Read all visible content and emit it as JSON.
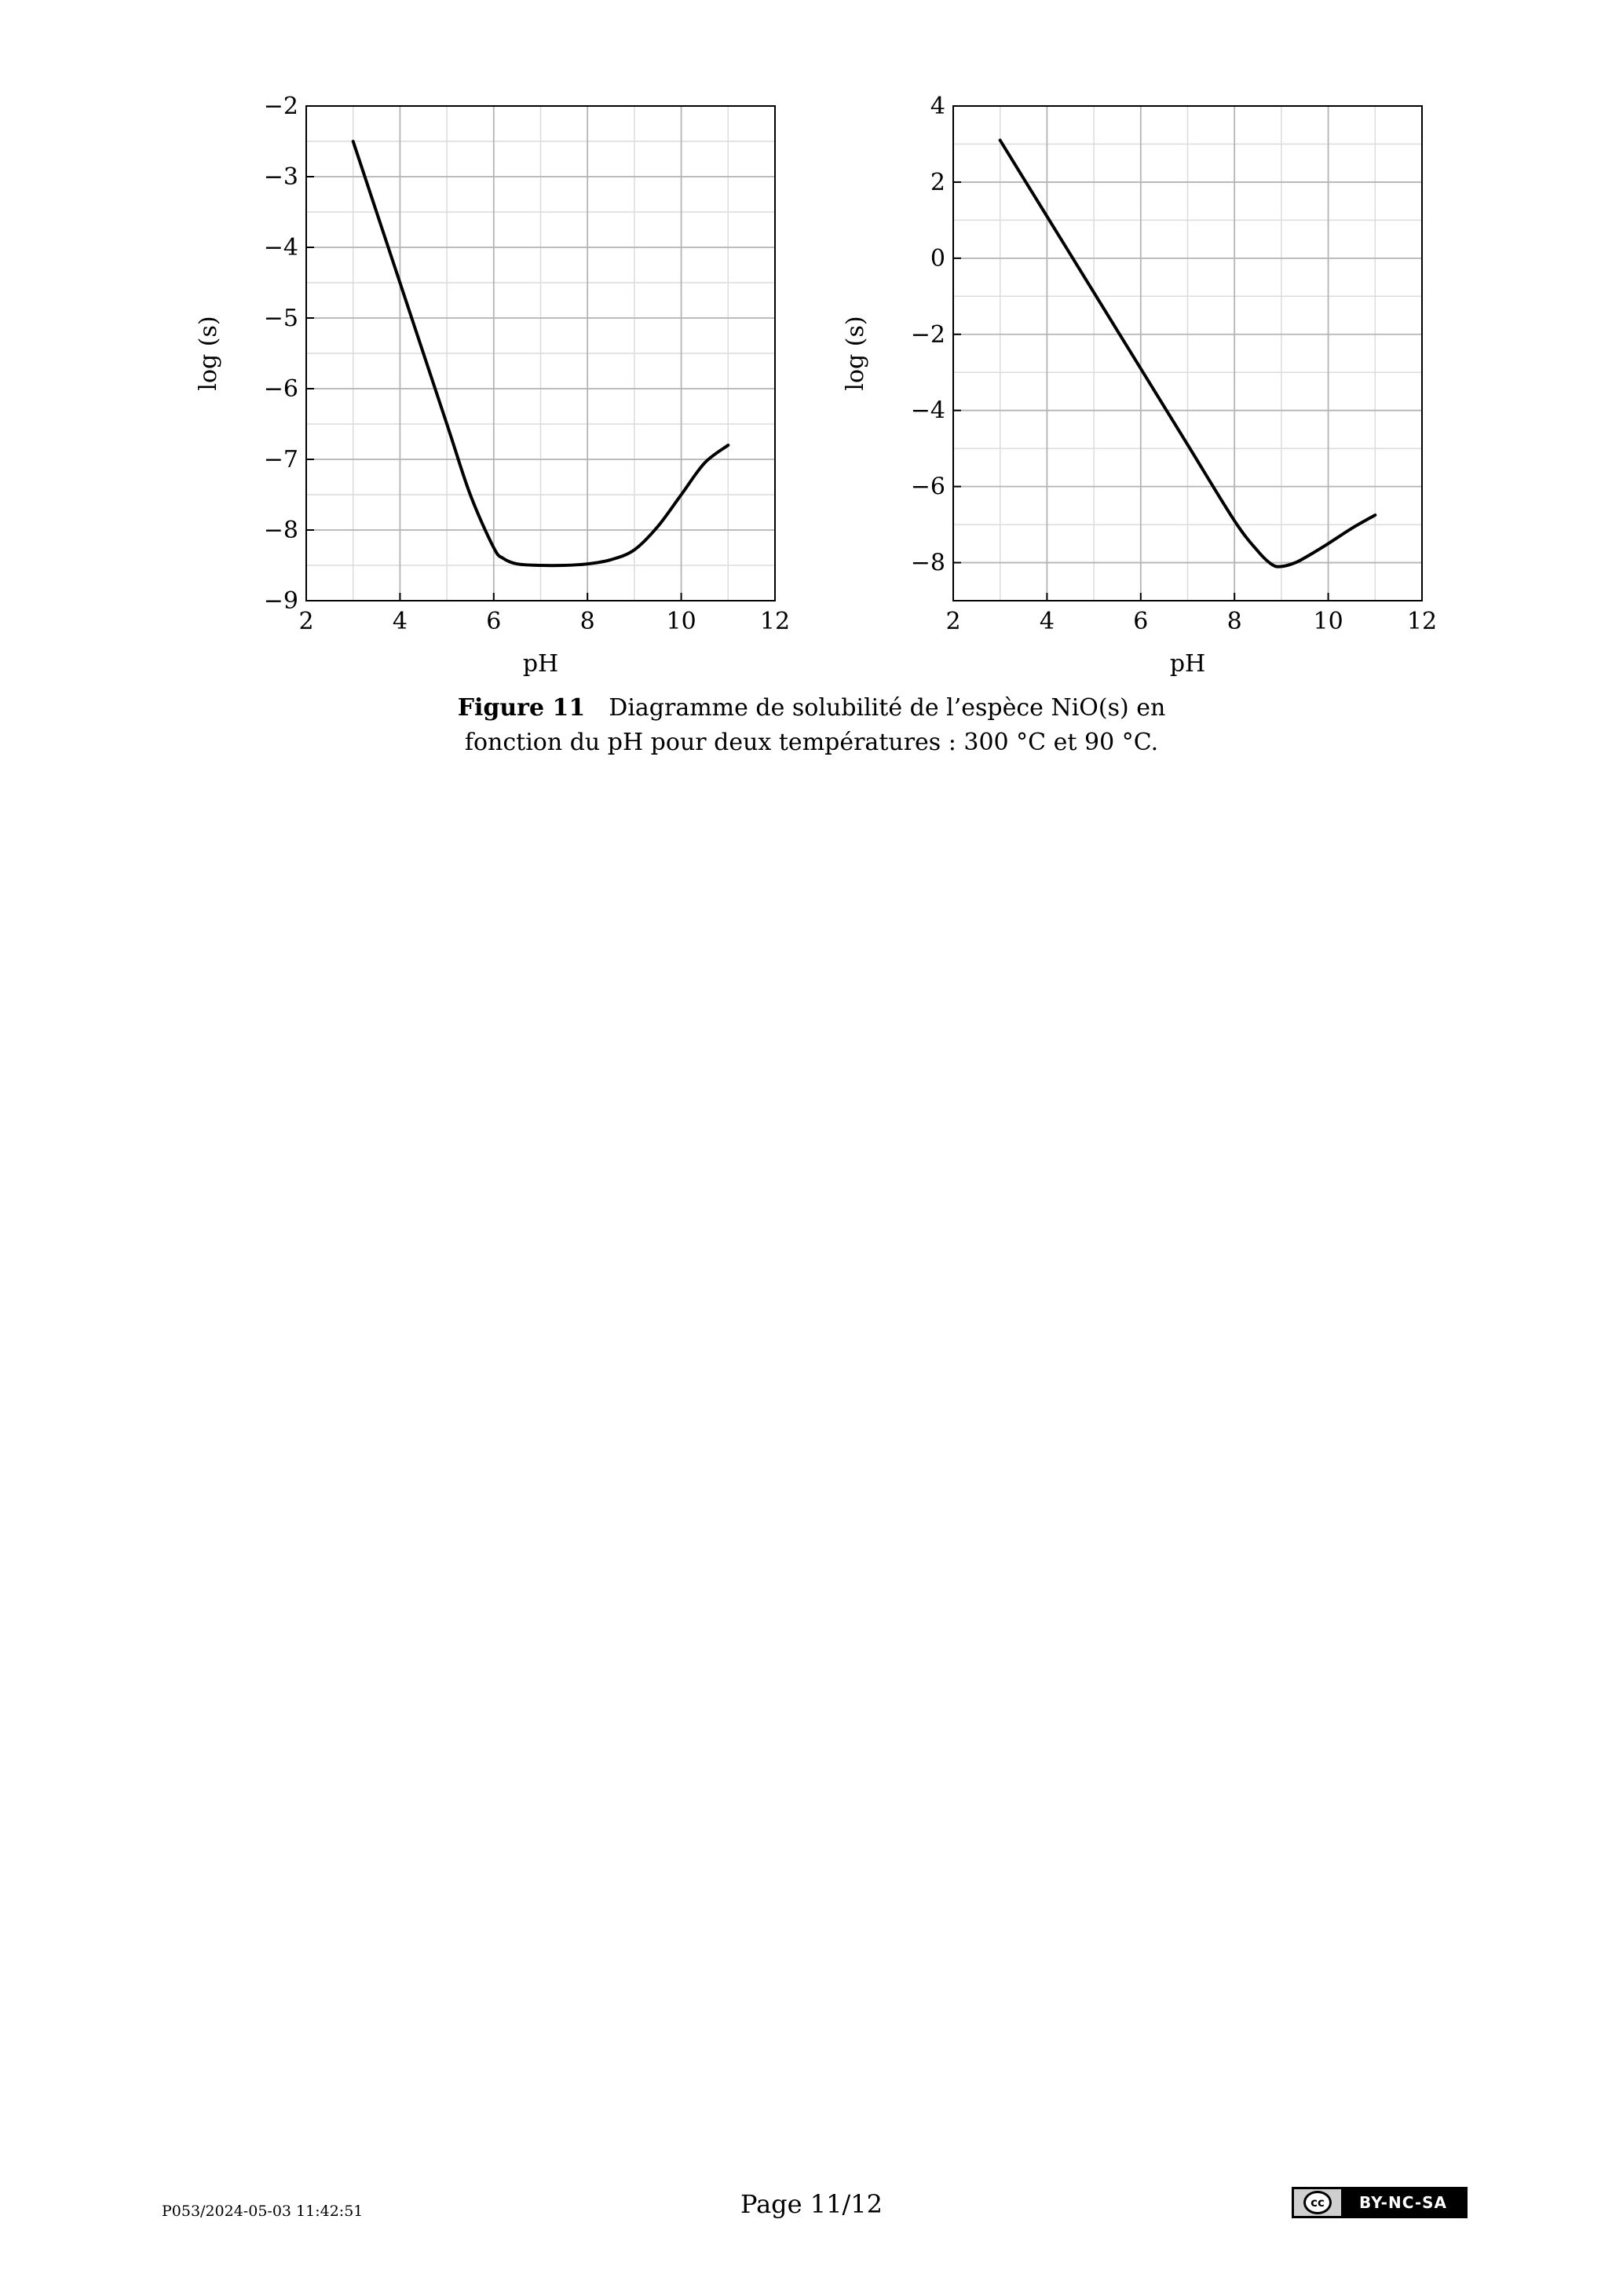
{
  "chart_data": [
    {
      "type": "line",
      "xlabel": "pH",
      "ylabel": "log (s)",
      "xlim": [
        2,
        12
      ],
      "ylim": [
        -9,
        -2
      ],
      "xticks": [
        2,
        4,
        6,
        8,
        10,
        12
      ],
      "yticks": [
        -9,
        -8,
        -7,
        -6,
        -5,
        -4,
        -3,
        -2
      ],
      "x_tick_labels": [
        "2",
        "4",
        "6",
        "8",
        "10",
        "12"
      ],
      "y_tick_labels": [
        "−9",
        "−8",
        "−7",
        "−6",
        "−5",
        "−4",
        "−3",
        "−2"
      ],
      "grid": true,
      "series": [
        {
          "x": [
            3,
            4,
            5,
            5.5,
            6,
            6.2,
            6.5,
            7,
            7.5,
            8,
            8.5,
            9,
            9.5,
            10,
            10.5,
            11
          ],
          "y": [
            -2.5,
            -4.5,
            -6.5,
            -7.5,
            -8.25,
            -8.4,
            -8.48,
            -8.5,
            -8.5,
            -8.48,
            -8.42,
            -8.28,
            -7.95,
            -7.5,
            -7.05,
            -6.8
          ]
        }
      ]
    },
    {
      "type": "line",
      "xlabel": "pH",
      "ylabel": "log (s)",
      "xlim": [
        2,
        12
      ],
      "ylim": [
        -9,
        4
      ],
      "xticks": [
        2,
        4,
        6,
        8,
        10,
        12
      ],
      "yticks": [
        -8,
        -6,
        -4,
        -2,
        0,
        2,
        4
      ],
      "x_tick_labels": [
        "2",
        "4",
        "6",
        "8",
        "10",
        "12"
      ],
      "y_tick_labels": [
        "−8",
        "−6",
        "−4",
        "−2",
        "0",
        "2",
        "4"
      ],
      "grid": true,
      "series": [
        {
          "x": [
            3,
            4,
            5,
            6,
            7,
            8,
            8.5,
            8.8,
            9,
            9.3,
            9.6,
            10,
            10.5,
            11
          ],
          "y": [
            3.1,
            1.1,
            -0.9,
            -2.9,
            -4.9,
            -6.9,
            -7.7,
            -8.05,
            -8.1,
            -8.0,
            -7.8,
            -7.5,
            -7.1,
            -6.75
          ]
        }
      ]
    }
  ],
  "caption": {
    "label": "Figure 11",
    "line1": "Diagramme de solubilité de l’espèce NiO(s) en",
    "line2": "fonction du pH pour deux températures : 300 °C et 90 °C."
  },
  "footer": {
    "left": "P053/2024-05-03 11:42:51",
    "center": "Page 11/12",
    "license_cc": "cc",
    "license_text": "BY-NC-SA"
  }
}
